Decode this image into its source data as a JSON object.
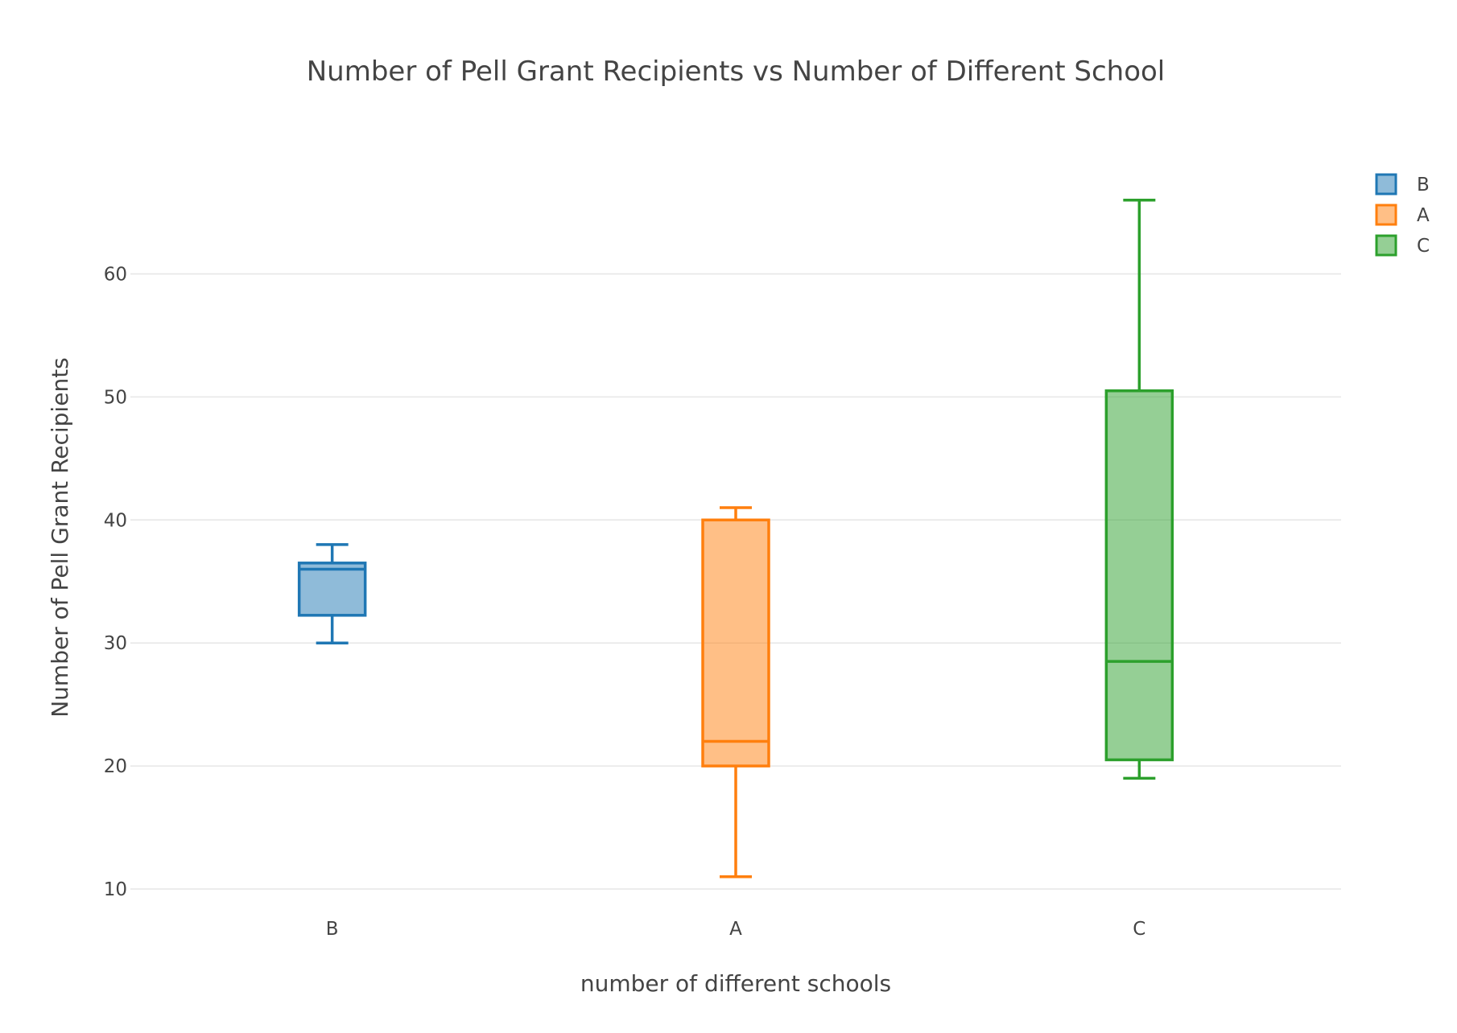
{
  "chart_data": {
    "type": "box",
    "title": "Number of Pell Grant Recipients vs Number of Different School",
    "xlabel": "number of different schools",
    "ylabel": "Number of Pell Grant Recipients",
    "categories": [
      "B",
      "A",
      "C"
    ],
    "ylim": [
      8,
      72
    ],
    "yticks": [
      10,
      20,
      30,
      40,
      50,
      60
    ],
    "grid": true,
    "legend_position": "top-right",
    "series": [
      {
        "name": "B",
        "color": "#1f77b4",
        "min": 30,
        "q1": 32.25,
        "median": 36,
        "q3": 36.5,
        "max": 38
      },
      {
        "name": "A",
        "color": "#ff7f0e",
        "min": 11,
        "q1": 20,
        "median": 22,
        "q3": 40,
        "max": 41
      },
      {
        "name": "C",
        "color": "#2ca02c",
        "min": 19,
        "q1": 20.5,
        "median": 28.5,
        "q3": 50.5,
        "max": 66
      }
    ]
  }
}
